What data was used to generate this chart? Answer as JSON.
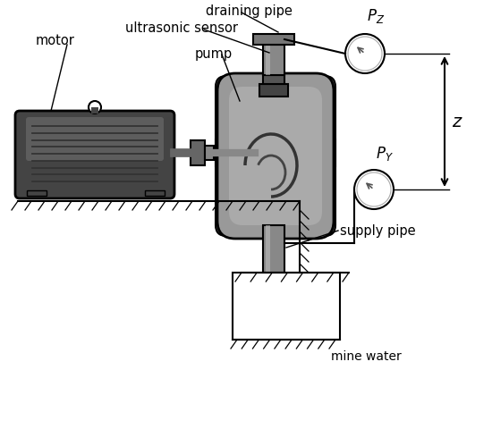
{
  "bg_color": "#ffffff",
  "dark_gray": "#555555",
  "med_gray": "#888888",
  "light_gray": "#aaaaaa",
  "very_light_gray": "#cccccc",
  "black": "#000000",
  "labels": {
    "motor": "motor",
    "pump": "pump",
    "draining_pipe": "draining pipe",
    "ultrasonic_sensor": "ultrasonic sensor",
    "supply_pipe": "supply pipe",
    "mine_water": "mine water",
    "pz": "$P_Z$",
    "py": "$P_Y$",
    "z": "$z$"
  },
  "figsize": [
    5.5,
    4.8
  ],
  "dpi": 100
}
